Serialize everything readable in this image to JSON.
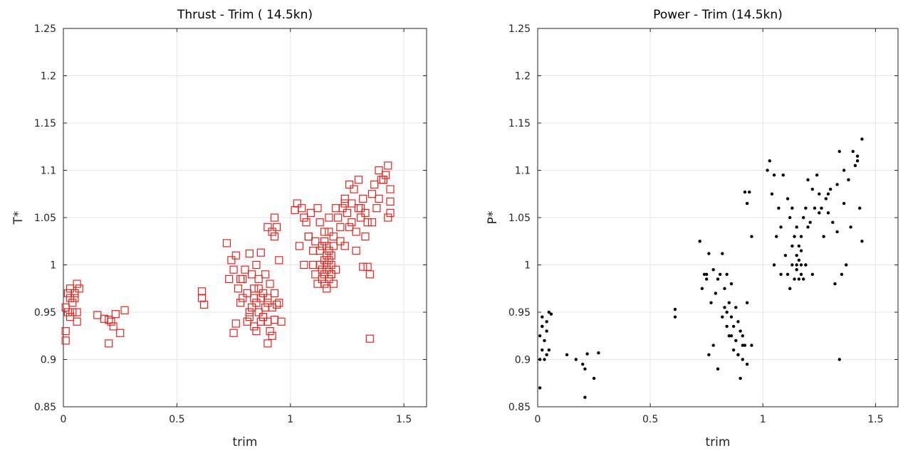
{
  "chart_data": [
    {
      "type": "scatter",
      "title": "Thrust  - Trim ( 14.5kn)",
      "xlabel": "trim",
      "ylabel": "T*",
      "xlim": [
        0,
        1.6
      ],
      "ylim": [
        0.85,
        1.25
      ],
      "xticks": [
        0,
        0.5,
        1,
        1.5
      ],
      "xtick_labels": [
        "0",
        "0.5",
        "1",
        "1.5"
      ],
      "yticks": [
        0.85,
        0.9,
        0.95,
        1,
        1.05,
        1.1,
        1.15,
        1.2,
        1.25
      ],
      "ytick_labels": [
        "0.85",
        "0.9",
        "0.95",
        "1",
        "1.05",
        "1.1",
        "1.15",
        "1.2",
        "1.25"
      ],
      "grid": true,
      "marker": "square",
      "color": "#e8221c",
      "x": [
        0.01,
        0.01,
        0.02,
        0.02,
        0.03,
        0.03,
        0.03,
        0.04,
        0.04,
        0.05,
        0.05,
        0.06,
        0.06,
        0.07,
        0.01,
        0.06,
        0.15,
        0.18,
        0.2,
        0.21,
        0.22,
        0.23,
        0.25,
        0.27,
        0.2,
        0.61,
        0.61,
        0.62,
        0.72,
        0.73,
        0.74,
        0.75,
        0.76,
        0.76,
        0.77,
        0.78,
        0.78,
        0.79,
        0.8,
        0.81,
        0.82,
        0.82,
        0.83,
        0.83,
        0.84,
        0.84,
        0.85,
        0.85,
        0.85,
        0.86,
        0.86,
        0.87,
        0.87,
        0.87,
        0.88,
        0.88,
        0.89,
        0.89,
        0.9,
        0.9,
        0.9,
        0.91,
        0.91,
        0.92,
        0.92,
        0.92,
        0.93,
        0.93,
        0.94,
        0.94,
        0.95,
        0.95,
        0.96,
        0.9,
        0.93,
        0.93,
        0.75,
        0.82,
        0.84,
        0.86,
        0.88,
        0.79,
        0.81,
        0.9,
        1.02,
        1.03,
        1.04,
        1.05,
        1.06,
        1.07,
        1.08,
        1.09,
        1.1,
        1.11,
        1.12,
        1.12,
        1.13,
        1.13,
        1.14,
        1.14,
        1.14,
        1.15,
        1.15,
        1.15,
        1.15,
        1.16,
        1.16,
        1.16,
        1.16,
        1.17,
        1.17,
        1.17,
        1.17,
        1.18,
        1.18,
        1.18,
        1.19,
        1.19,
        1.2,
        1.2,
        1.11,
        1.13,
        1.15,
        1.17,
        1.19,
        1.13,
        1.16,
        1.18,
        1.21,
        1.22,
        1.23,
        1.24,
        1.24,
        1.25,
        1.26,
        1.27,
        1.27,
        1.28,
        1.29,
        1.3,
        1.3,
        1.31,
        1.32,
        1.33,
        1.34,
        1.35,
        1.36,
        1.37,
        1.38,
        1.39,
        1.4,
        1.41,
        1.42,
        1.43,
        1.44,
        1.44,
        1.44,
        1.43,
        1.41,
        1.39,
        1.36,
        1.33,
        1.31,
        1.29,
        1.26,
        1.24,
        1.22,
        1.32,
        1.34,
        1.35,
        1.08,
        1.1,
        1.06
      ],
      "y": [
        0.955,
        0.92,
        0.97,
        0.95,
        0.945,
        0.965,
        0.975,
        0.96,
        0.95,
        0.965,
        0.97,
        0.95,
        0.98,
        0.975,
        0.93,
        0.94,
        0.947,
        0.943,
        0.917,
        0.94,
        0.935,
        0.948,
        0.928,
        0.952,
        0.942,
        0.972,
        0.965,
        0.958,
        1.023,
        0.985,
        1.005,
        0.995,
        0.938,
        1.01,
        0.975,
        0.96,
        0.985,
        0.965,
        0.995,
        0.97,
        0.945,
        1.012,
        0.99,
        0.955,
        0.935,
        0.975,
        1.0,
        0.96,
        0.93,
        0.985,
        0.95,
        1.013,
        0.965,
        0.94,
        0.97,
        0.945,
        0.99,
        0.955,
        0.94,
        0.965,
        0.917,
        0.98,
        0.93,
        0.955,
        0.925,
        1.035,
        0.942,
        0.97,
        1.04,
        0.958,
        1.005,
        0.96,
        0.94,
        1.04,
        1.05,
        1.03,
        0.928,
        0.95,
        0.965,
        0.975,
        0.945,
        0.985,
        0.94,
        0.96,
        1.058,
        1.065,
        1.02,
        1.06,
        1.0,
        1.045,
        1.03,
        1.055,
        1.0,
        0.99,
        0.98,
        1.06,
        1.0,
        1.015,
        0.985,
        1.02,
        0.995,
        1.005,
        0.99,
        1.025,
        0.98,
        1.01,
        0.995,
        1.0,
        1.02,
        0.985,
        1.005,
        1.015,
        1.035,
        0.99,
        1.0,
        1.01,
        0.98,
        1.02,
        1.06,
        0.995,
        1.025,
        1.045,
        1.035,
        1.05,
        1.03,
        1.0,
        0.975,
        0.99,
        1.05,
        1.04,
        1.06,
        1.02,
        1.07,
        1.055,
        1.085,
        1.045,
        1.065,
        1.08,
        1.035,
        1.06,
        1.09,
        1.05,
        1.07,
        1.055,
        1.045,
        0.922,
        1.075,
        1.085,
        1.06,
        1.1,
        1.09,
        1.09,
        1.095,
        1.105,
        1.08,
        1.055,
        1.067,
        1.05,
        1.09,
        1.07,
        1.045,
        1.03,
        1.06,
        1.015,
        1.04,
        1.065,
        1.025,
        0.998,
        0.998,
        0.99,
        1.03,
        1.015,
        1.05
      ]
    },
    {
      "type": "scatter",
      "title": "Power - Trim  (14.5kn)",
      "xlabel": "trim",
      "ylabel": "P*",
      "xlim": [
        0,
        1.6
      ],
      "ylim": [
        0.85,
        1.25
      ],
      "xticks": [
        0,
        0.5,
        1,
        1.5
      ],
      "xtick_labels": [
        "0",
        "0.5",
        "1",
        "1.5"
      ],
      "yticks": [
        0.85,
        0.9,
        0.95,
        1,
        1.05,
        1.1,
        1.15,
        1.2,
        1.25
      ],
      "ytick_labels": [
        "0.85",
        "0.9",
        "0.95",
        "1",
        "1.05",
        "1.1",
        "1.15",
        "1.2",
        "1.25"
      ],
      "grid": true,
      "marker": "dot",
      "color": "#000000",
      "x": [
        0.01,
        0.01,
        0.02,
        0.02,
        0.02,
        0.03,
        0.03,
        0.04,
        0.04,
        0.05,
        0.05,
        0.06,
        0.01,
        0.02,
        0.04,
        0.13,
        0.17,
        0.2,
        0.21,
        0.22,
        0.25,
        0.27,
        0.21,
        0.61,
        0.61,
        0.72,
        0.73,
        0.74,
        0.75,
        0.76,
        0.76,
        0.77,
        0.78,
        0.79,
        0.8,
        0.8,
        0.81,
        0.82,
        0.82,
        0.83,
        0.83,
        0.84,
        0.84,
        0.85,
        0.85,
        0.86,
        0.86,
        0.87,
        0.87,
        0.88,
        0.88,
        0.89,
        0.89,
        0.9,
        0.9,
        0.91,
        0.91,
        0.92,
        0.92,
        0.93,
        0.93,
        0.94,
        0.95,
        0.95,
        0.75,
        0.78,
        0.84,
        0.86,
        0.89,
        0.91,
        0.93,
        1.02,
        1.03,
        1.04,
        1.05,
        1.06,
        1.07,
        1.08,
        1.09,
        1.1,
        1.11,
        1.12,
        1.12,
        1.13,
        1.13,
        1.14,
        1.14,
        1.15,
        1.15,
        1.15,
        1.16,
        1.16,
        1.16,
        1.17,
        1.17,
        1.17,
        1.18,
        1.18,
        1.19,
        1.19,
        1.2,
        1.2,
        1.11,
        1.13,
        1.15,
        1.17,
        1.19,
        1.21,
        1.22,
        1.23,
        1.24,
        1.25,
        1.26,
        1.27,
        1.28,
        1.29,
        1.3,
        1.31,
        1.32,
        1.33,
        1.34,
        1.35,
        1.36,
        1.37,
        1.38,
        1.4,
        1.41,
        1.42,
        1.43,
        1.44,
        1.44,
        1.42,
        1.39,
        1.36,
        1.33,
        1.29,
        1.25,
        1.22,
        1.34,
        1.05,
        1.08
      ],
      "y": [
        0.925,
        0.87,
        0.945,
        0.91,
        0.935,
        0.9,
        0.92,
        0.94,
        0.93,
        0.95,
        0.91,
        0.948,
        0.9,
        0.935,
        0.905,
        0.905,
        0.9,
        0.895,
        0.86,
        0.906,
        0.88,
        0.907,
        0.89,
        0.953,
        0.945,
        1.025,
        0.975,
        0.99,
        0.985,
        0.905,
        1.012,
        0.96,
        0.995,
        0.97,
        0.985,
        0.89,
        0.99,
        0.945,
        1.012,
        0.975,
        0.955,
        0.935,
        0.99,
        0.96,
        0.925,
        0.98,
        0.945,
        0.935,
        0.91,
        0.955,
        0.92,
        0.94,
        0.905,
        0.93,
        0.88,
        0.925,
        0.9,
        1.077,
        0.915,
        0.96,
        1.065,
        1.077,
        0.915,
        1.03,
        0.99,
        0.915,
        0.95,
        0.925,
        0.905,
        0.915,
        0.895,
        1.1,
        1.11,
        1.075,
        1.095,
        1.03,
        1.06,
        1.04,
        1.095,
        1.01,
        0.99,
        0.975,
        1.05,
        1.0,
        1.02,
        0.985,
        1.03,
        0.995,
        1.01,
        1.04,
        0.985,
        1.005,
        1.02,
        0.99,
        1.0,
        1.015,
        0.985,
        1.05,
        1.0,
        1.06,
        1.09,
        1.04,
        1.07,
        1.06,
        1.0,
        1.03,
        1.0,
        1.045,
        0.99,
        1.06,
        1.095,
        1.075,
        1.06,
        1.03,
        1.07,
        1.055,
        1.08,
        1.045,
        0.98,
        1.085,
        1.12,
        0.99,
        1.1,
        1.0,
        1.09,
        1.12,
        1.105,
        1.11,
        1.06,
        1.133,
        1.025,
        1.115,
        1.04,
        1.065,
        1.035,
        1.075,
        1.055,
        1.08,
        0.9,
        1.0,
        0.99
      ]
    }
  ]
}
